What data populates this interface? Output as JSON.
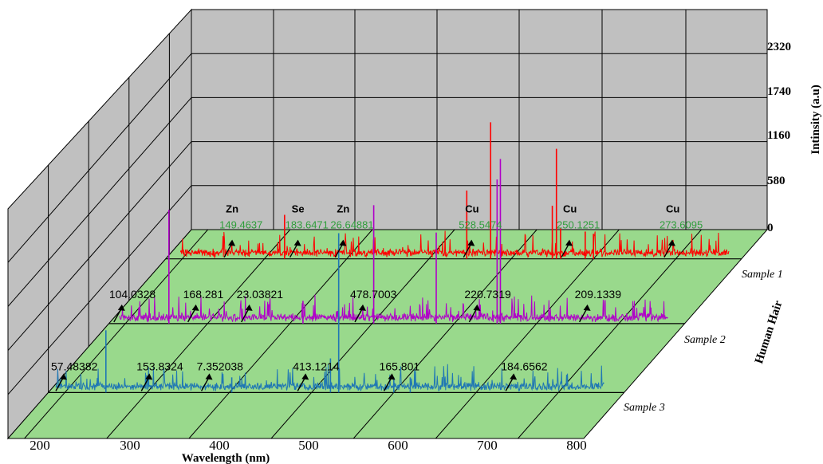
{
  "chart_data": {
    "type": "line",
    "title": "",
    "xlabel": "Wavelength (nm)",
    "ylabel": "Intinsity (a.u)",
    "zlabel": "Human Hair",
    "x_ticks": [
      "200",
      "300",
      "400",
      "500",
      "600",
      "700",
      "800"
    ],
    "y_ticks": [
      "0",
      "580",
      "1160",
      "1740",
      "2320"
    ],
    "xlim": [
      180,
      880
    ],
    "ylim": [
      0,
      2900
    ],
    "grid": true,
    "colors": {
      "wall": "#c0c0c0",
      "floor": "#99d98c",
      "sample_1": "#ff0000",
      "sample_2": "#b000c8",
      "sample_3": "#1f77b4",
      "annotation_value": "#2e9e3a"
    },
    "series": [
      {
        "name": "Sample 1",
        "baseline": 60,
        "noise": 110,
        "peaks": [
          [
            324.5,
            580
          ],
          [
            546,
            900
          ],
          [
            575,
            1800
          ],
          [
            650,
            700
          ],
          [
            655,
            1450
          ],
          [
            660,
            400
          ],
          [
            690,
            360
          ],
          [
            700,
            330
          ]
        ]
      },
      {
        "name": "Sample 2",
        "baseline": 60,
        "noise": 110,
        "peaks": [
          [
            253,
            1500
          ],
          [
            416,
            300
          ],
          [
            502,
            1560
          ],
          [
            578,
            1200
          ],
          [
            652,
            1900
          ],
          [
            656,
            2170
          ]
        ]
      },
      {
        "name": "Sample 3",
        "baseline": 60,
        "noise": 110,
        "peaks": [
          [
            250,
            820
          ],
          [
            403,
            200
          ],
          [
            523,
            450
          ],
          [
            533,
            2100
          ],
          [
            600,
            200
          ],
          [
            620,
            200
          ]
        ]
      }
    ],
    "annotations": [
      {
        "series": "Sample 1",
        "element": "Zn",
        "value": "149.4637",
        "x": 255
      },
      {
        "series": "Sample 1",
        "element": "Se",
        "value": "183.6471",
        "x": 335
      },
      {
        "series": "Sample 1",
        "element": "Zn",
        "value": "26.64881",
        "x": 390
      },
      {
        "series": "Sample 1",
        "element": "Cu",
        "value": "528.5474",
        "x": 546
      },
      {
        "series": "Sample 1",
        "element": "Cu",
        "value": "250.1251",
        "x": 665
      },
      {
        "series": "Sample 1",
        "element": "Cu",
        "value": "273.6095",
        "x": 790
      },
      {
        "series": "Sample 2",
        "element": "",
        "value": "104.0328",
        "x": 190
      },
      {
        "series": "Sample 2",
        "element": "",
        "value": "168.281",
        "x": 280
      },
      {
        "series": "Sample 2",
        "element": "",
        "value": "23.03821",
        "x": 345
      },
      {
        "series": "Sample 2",
        "element": "",
        "value": "478.7003",
        "x": 483
      },
      {
        "series": "Sample 2",
        "element": "",
        "value": "220.7319",
        "x": 622
      },
      {
        "series": "Sample 2",
        "element": "",
        "value": "209.1339",
        "x": 756
      },
      {
        "series": "Sample 3",
        "element": "",
        "value": "57.48382",
        "x": 193
      },
      {
        "series": "Sample 3",
        "element": "",
        "value": "153.8324",
        "x": 297
      },
      {
        "series": "Sample 3",
        "element": "",
        "value": "7.352038",
        "x": 370
      },
      {
        "series": "Sample 3",
        "element": "",
        "value": "413.1214",
        "x": 487
      },
      {
        "series": "Sample 3",
        "element": "",
        "value": "165.801",
        "x": 592
      },
      {
        "series": "Sample 3",
        "element": "",
        "value": "184.6562",
        "x": 740
      }
    ]
  }
}
